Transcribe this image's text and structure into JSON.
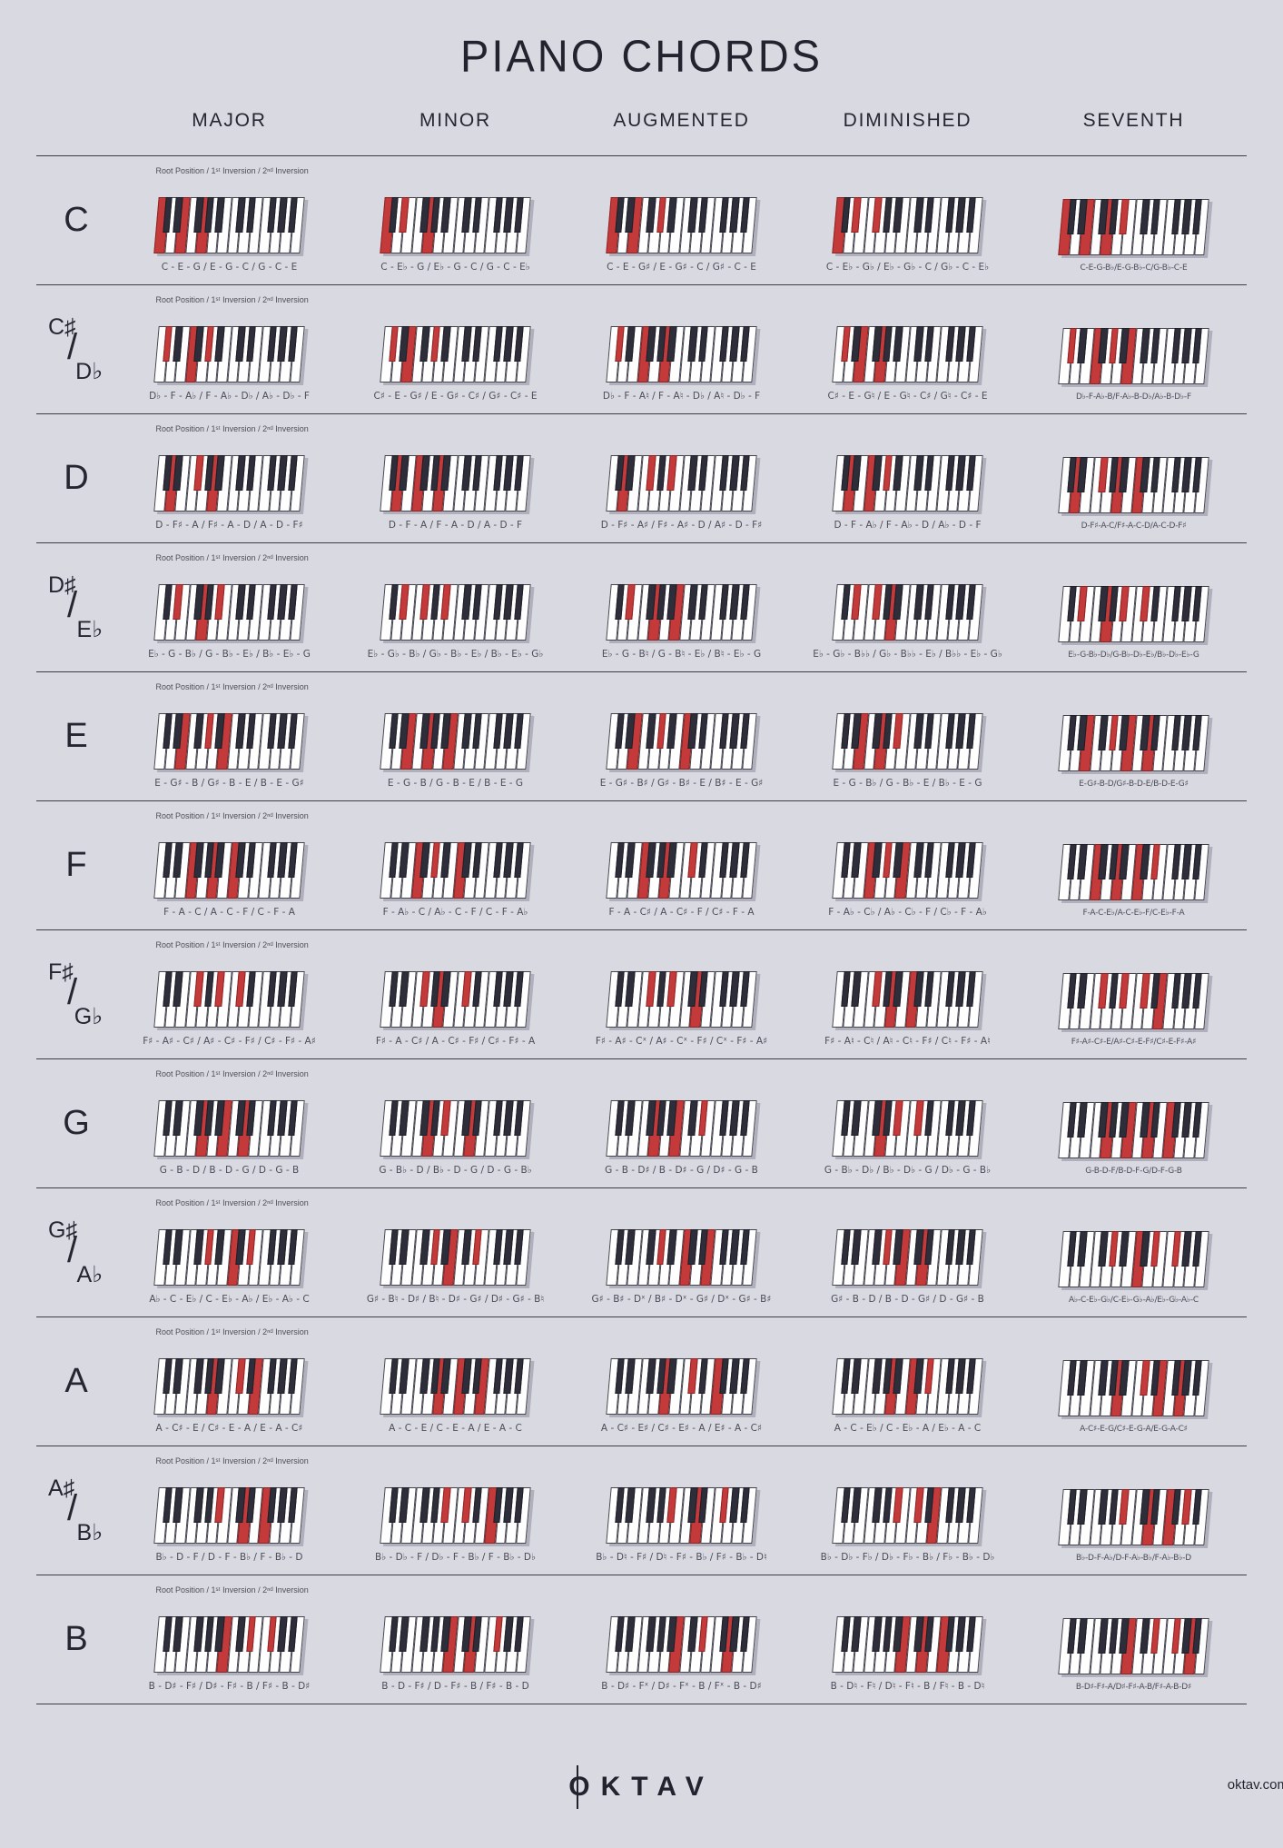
{
  "page": {
    "title": "PIANO CHORDS",
    "inversion_note": "Root Position  /  1ˢᵗ Inversion  /  2ⁿᵈ Inversion",
    "root_divider": "/",
    "brand": {
      "o": "O",
      "rest": "KTAV"
    },
    "url": "oktav.com"
  },
  "colors": {
    "background": "#d9d9e1",
    "accent_red": "#c43a3a",
    "key_black": "#2e2e3a",
    "text_dark": "#262632",
    "text_gray": "#4d4d5b"
  },
  "columns": [
    "MAJOR",
    "MINOR",
    "AUGMENTED",
    "DIMINISHED",
    "SEVENTH"
  ],
  "rows": [
    {
      "root_top": "C",
      "root_bottom": "",
      "cells": [
        {
          "label": "C - E - G / E - G - C / G - C - E",
          "keys": [
            0,
            4,
            7
          ]
        },
        {
          "label": "C - E♭ - G / E♭ - G - C / G - C - E♭",
          "keys": [
            0,
            3,
            7
          ]
        },
        {
          "label": "C - E - G♯ / E - G♯ - C / G♯ - C - E",
          "keys": [
            0,
            4,
            8
          ]
        },
        {
          "label": "C - E♭ - G♭ / E♭ - G♭ - C / G♭ - C - E♭",
          "keys": [
            0,
            3,
            6
          ]
        },
        {
          "label": "C-E-G-B♭/E-G-B♭-C/G-B♭-C-E",
          "keys": [
            0,
            4,
            7,
            10
          ]
        }
      ]
    },
    {
      "root_top": "C♯",
      "root_bottom": "D♭",
      "cells": [
        {
          "label": "D♭ - F - A♭ / F - A♭ - D♭ / A♭ - D♭ - F",
          "keys": [
            1,
            5,
            8
          ]
        },
        {
          "label": "C♯ - E - G♯ / E - G♯ - C♯ / G♯ - C♯ - E",
          "keys": [
            1,
            4,
            8
          ]
        },
        {
          "label": "D♭ - F - A♮ / F - A♮ - D♭ / A♮ - D♭ - F",
          "keys": [
            1,
            5,
            9
          ]
        },
        {
          "label": "C♯ - E - G♮ / E - G♮ - C♯ / G♮ - C♯ - E",
          "keys": [
            1,
            4,
            7
          ]
        },
        {
          "label": "D♭-F-A♭-B/F-A♭-B-D♭/A♭-B-D♭-F",
          "keys": [
            1,
            5,
            8,
            11
          ]
        }
      ]
    },
    {
      "root_top": "D",
      "root_bottom": "",
      "cells": [
        {
          "label": "D - F♯ - A / F♯ - A - D / A - D - F♯",
          "keys": [
            2,
            6,
            9
          ]
        },
        {
          "label": "D - F - A / F - A - D / A - D - F",
          "keys": [
            2,
            5,
            9
          ]
        },
        {
          "label": "D - F♯ - A♯ / F♯ - A♯ - D / A♯ - D - F♯",
          "keys": [
            2,
            6,
            10
          ]
        },
        {
          "label": "D - F - A♭ / F - A♭ - D / A♭ - D - F",
          "keys": [
            2,
            5,
            8
          ]
        },
        {
          "label": "D-F♯-A-C/F♯-A-C-D/A-C-D-F♯",
          "keys": [
            2,
            6,
            9,
            12
          ]
        }
      ]
    },
    {
      "root_top": "D♯",
      "root_bottom": "E♭",
      "cells": [
        {
          "label": "E♭ - G - B♭ / G - B♭ - E♭ / B♭ - E♭ - G",
          "keys": [
            3,
            7,
            10
          ]
        },
        {
          "label": "E♭ - G♭ - B♭ / G♭ - B♭ - E♭ / B♭ - E♭ - G♭",
          "keys": [
            3,
            6,
            10
          ]
        },
        {
          "label": "E♭ - G - B♮ / G - B♮ - E♭ / B♮ - E♭ - G",
          "keys": [
            3,
            7,
            11
          ]
        },
        {
          "label": "E♭ - G♭ - B♭♭ / G♭ - B♭♭ - E♭ / B♭♭ - E♭ - G♭",
          "keys": [
            3,
            6,
            9
          ]
        },
        {
          "label": "E♭-G-B♭-D♭/G-B♭-D♭-E♭/B♭-D♭-E♭-G",
          "keys": [
            3,
            7,
            10,
            13
          ]
        }
      ]
    },
    {
      "root_top": "E",
      "root_bottom": "",
      "cells": [
        {
          "label": "E - G♯ - B / G♯ - B - E / B - E - G♯",
          "keys": [
            4,
            8,
            11
          ]
        },
        {
          "label": "E - G - B / G - B - E / B - E - G",
          "keys": [
            4,
            7,
            11
          ]
        },
        {
          "label": "E - G♯ - B♯ / G♯ - B♯ - E / B♯ - E - G♯",
          "keys": [
            4,
            8,
            12
          ]
        },
        {
          "label": "E - G - B♭ / G - B♭ - E / B♭ - E - G",
          "keys": [
            4,
            7,
            10
          ]
        },
        {
          "label": "E-G♯-B-D/G♯-B-D-E/B-D-E-G♯",
          "keys": [
            4,
            8,
            11,
            14
          ]
        }
      ]
    },
    {
      "root_top": "F",
      "root_bottom": "",
      "cells": [
        {
          "label": "F - A - C / A - C - F / C - F - A",
          "keys": [
            5,
            9,
            12
          ]
        },
        {
          "label": "F - A♭ - C / A♭ - C - F / C - F - A♭",
          "keys": [
            5,
            8,
            12
          ]
        },
        {
          "label": "F - A - C♯ / A - C♯ - F / C♯ - F - A",
          "keys": [
            5,
            9,
            13
          ]
        },
        {
          "label": "F - A♭ - C♭ / A♭ - C♭ - F / C♭ - F - A♭",
          "keys": [
            5,
            8,
            11
          ]
        },
        {
          "label": "F-A-C-E♭/A-C-E♭-F/C-E♭-F-A",
          "keys": [
            5,
            9,
            12,
            15
          ]
        }
      ]
    },
    {
      "root_top": "F♯",
      "root_bottom": "G♭",
      "cells": [
        {
          "label": "F♯ - A♯ - C♯ / A♯ - C♯ - F♯ / C♯ - F♯ - A♯",
          "keys": [
            6,
            10,
            13
          ]
        },
        {
          "label": "F♯ - A - C♯ / A - C♯ - F♯ / C♯ - F♯ - A",
          "keys": [
            6,
            9,
            13
          ]
        },
        {
          "label": "F♯ - A♯ - Cˣ / A♯ - Cˣ - F♯ / Cˣ - F♯ - A♯",
          "keys": [
            6,
            10,
            14
          ]
        },
        {
          "label": "F♯ - A♮ - C♮ / A♮ - C♮ - F♯ / C♮ - F♯ - A♮",
          "keys": [
            6,
            9,
            12
          ]
        },
        {
          "label": "F♯-A♯-C♯-E/A♯-C♯-E-F♯/C♯-E-F♯-A♯",
          "keys": [
            6,
            10,
            13,
            16
          ]
        }
      ]
    },
    {
      "root_top": "G",
      "root_bottom": "",
      "cells": [
        {
          "label": "G - B - D / B - D - G / D - G - B",
          "keys": [
            7,
            11,
            14
          ]
        },
        {
          "label": "G - B♭ - D / B♭ - D - G / D - G - B♭",
          "keys": [
            7,
            10,
            14
          ]
        },
        {
          "label": "G - B - D♯ / B - D♯ - G / D♯ - G - B",
          "keys": [
            7,
            11,
            15
          ]
        },
        {
          "label": "G - B♭ - D♭ / B♭ - D♭ - G / D♭ - G - B♭",
          "keys": [
            7,
            10,
            13
          ]
        },
        {
          "label": "G-B-D-F/B-D-F-G/D-F-G-B",
          "keys": [
            7,
            11,
            14,
            17
          ]
        }
      ]
    },
    {
      "root_top": "G♯",
      "root_bottom": "A♭",
      "cells": [
        {
          "label": "A♭ - C - E♭ / C - E♭ - A♭ / E♭ - A♭ - C",
          "keys": [
            8,
            12,
            15
          ]
        },
        {
          "label": "G♯ - B♮ - D♯ / B♮ - D♯ - G♯ / D♯ - G♯ - B♮",
          "keys": [
            8,
            11,
            15
          ]
        },
        {
          "label": "G♯ - B♯ - Dˣ / B♯ - Dˣ - G♯ / Dˣ - G♯ - B♯",
          "keys": [
            8,
            12,
            16
          ]
        },
        {
          "label": "G♯ - B - D / B - D - G♯ / D - G♯ - B",
          "keys": [
            8,
            11,
            14
          ]
        },
        {
          "label": "A♭-C-E♭-G♭/C-E♭-G♭-A♭/E♭-G♭-A♭-C",
          "keys": [
            8,
            12,
            15,
            18
          ]
        }
      ]
    },
    {
      "root_top": "A",
      "root_bottom": "",
      "cells": [
        {
          "label": "A - C♯ - E / C♯ - E - A / E - A - C♯",
          "keys": [
            9,
            13,
            16
          ]
        },
        {
          "label": "A - C - E / C - E - A / E - A - C",
          "keys": [
            9,
            12,
            16
          ]
        },
        {
          "label": "A - C♯ - E♯ / C♯ - E♯ - A / E♯ - A - C♯",
          "keys": [
            9,
            13,
            17
          ]
        },
        {
          "label": "A - C - E♭ / C - E♭ - A / E♭ - A - C",
          "keys": [
            9,
            12,
            15
          ]
        },
        {
          "label": "A-C♯-E-G/C♯-E-G-A/E-G-A-C♯",
          "keys": [
            9,
            13,
            16,
            19
          ]
        }
      ]
    },
    {
      "root_top": "A♯",
      "root_bottom": "B♭",
      "cells": [
        {
          "label": "B♭ - D - F / D - F - B♭ / F - B♭ - D",
          "keys": [
            10,
            14,
            17
          ]
        },
        {
          "label": "B♭ - D♭ - F / D♭ - F - B♭ / F - B♭ - D♭",
          "keys": [
            10,
            13,
            17
          ]
        },
        {
          "label": "B♭ - D♮ - F♯ / D♮ - F♯ - B♭ / F♯ - B♭ - D♮",
          "keys": [
            10,
            14,
            18
          ]
        },
        {
          "label": "B♭ - D♭ - F♭ / D♭ - F♭ - B♭ / F♭ - B♭ - D♭",
          "keys": [
            10,
            13,
            16
          ]
        },
        {
          "label": "B♭-D-F-A♭/D-F-A♭-B♭/F-A♭-B♭-D",
          "keys": [
            10,
            14,
            17,
            20
          ]
        }
      ]
    },
    {
      "root_top": "B",
      "root_bottom": "",
      "cells": [
        {
          "label": "B - D♯ - F♯ / D♯ - F♯ - B / F♯ - B - D♯",
          "keys": [
            11,
            15,
            18
          ]
        },
        {
          "label": "B - D - F♯ / D - F♯ - B / F♯ - B - D",
          "keys": [
            11,
            14,
            18
          ]
        },
        {
          "label": "B - D♯ - Fˣ / D♯ - Fˣ - B / Fˣ - B - D♯",
          "keys": [
            11,
            15,
            19
          ]
        },
        {
          "label": "B - D♮ - F♮ / D♮ - F♮ - B / F♮ - B - D♮",
          "keys": [
            11,
            14,
            17
          ]
        },
        {
          "label": "B-D♯-F♯-A/D♯-F♯-A-B/F♯-A-B-D♯",
          "keys": [
            11,
            15,
            18,
            21
          ]
        }
      ]
    }
  ]
}
